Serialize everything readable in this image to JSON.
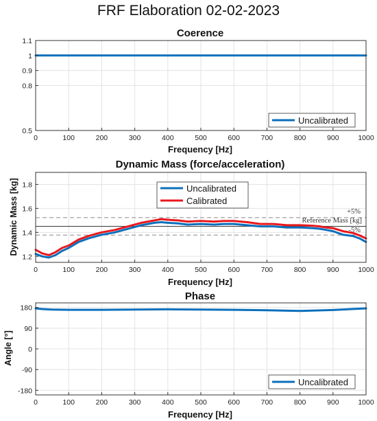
{
  "figure": {
    "title": "FRF Elaboration 02-02-2023"
  },
  "colors": {
    "uncalibrated": "#0b6fbc",
    "calibrated": "#e8181c",
    "reference": "#444444",
    "band": "#888888"
  },
  "chart_data": [
    {
      "type": "line",
      "title": "Coerence",
      "xlabel": "Frequency [Hz]",
      "ylabel": "",
      "xlim": [
        0,
        1000
      ],
      "ylim": [
        0.5,
        1.1
      ],
      "xticks": [
        "0",
        "100",
        "200",
        "300",
        "400",
        "500",
        "600",
        "700",
        "800",
        "900",
        "1000"
      ],
      "yticks": [
        {
          "v": 0.5,
          "label": "0.5"
        },
        {
          "v": 0.8,
          "label": "0.8"
        },
        {
          "v": 0.9,
          "label": "0.9"
        },
        {
          "v": 1.0,
          "label": "1"
        },
        {
          "v": 1.1,
          "label": "1.1"
        }
      ],
      "grid": true,
      "legend_position": "bottom-right",
      "series": [
        {
          "name": "Uncalibrated",
          "color": "#0b6fbc",
          "x": [
            0,
            100,
            200,
            300,
            400,
            500,
            600,
            700,
            800,
            900,
            1000
          ],
          "y": [
            1.0,
            1.0,
            1.0,
            1.0,
            1.0,
            1.0,
            1.0,
            1.0,
            1.0,
            1.0,
            1.0
          ]
        }
      ]
    },
    {
      "type": "line",
      "title": "Dynamic Mass (force/acceleration)",
      "xlabel": "Frequency [Hz]",
      "ylabel": "Dynamic Mass [kg]",
      "xlim": [
        0,
        1000
      ],
      "ylim": [
        1.15,
        1.9
      ],
      "xticks": [
        "0",
        "100",
        "200",
        "300",
        "400",
        "500",
        "600",
        "700",
        "800",
        "900",
        "1000"
      ],
      "yticks": [
        {
          "v": 1.2,
          "label": "1.2"
        },
        {
          "v": 1.4,
          "label": "1.4"
        },
        {
          "v": 1.6,
          "label": "1.6"
        },
        {
          "v": 1.8,
          "label": "1.8"
        }
      ],
      "grid": true,
      "legend_position": "top-center",
      "reference": {
        "value": 1.45,
        "label": "Reference Mass [kg]",
        "upper": 1.5225,
        "upper_label": "+5%",
        "lower": 1.3775,
        "lower_label": "-5%"
      },
      "series": [
        {
          "name": "Uncalibrated",
          "color": "#0b6fbc",
          "x": [
            0,
            20,
            40,
            60,
            80,
            100,
            130,
            160,
            200,
            240,
            280,
            320,
            360,
            380,
            400,
            430,
            460,
            500,
            540,
            570,
            600,
            640,
            680,
            720,
            760,
            800,
            840,
            860,
            880,
            900,
            930,
            960,
            980,
            1000
          ],
          "y": [
            1.22,
            1.2,
            1.19,
            1.21,
            1.245,
            1.27,
            1.32,
            1.35,
            1.38,
            1.4,
            1.43,
            1.46,
            1.48,
            1.485,
            1.48,
            1.475,
            1.465,
            1.47,
            1.465,
            1.47,
            1.47,
            1.46,
            1.45,
            1.45,
            1.44,
            1.44,
            1.435,
            1.43,
            1.42,
            1.41,
            1.38,
            1.37,
            1.35,
            1.32
          ]
        },
        {
          "name": "Calibrated",
          "color": "#e8181c",
          "x": [
            0,
            20,
            40,
            60,
            80,
            100,
            130,
            160,
            200,
            240,
            280,
            320,
            360,
            380,
            400,
            430,
            460,
            500,
            540,
            570,
            600,
            640,
            680,
            720,
            760,
            800,
            840,
            860,
            880,
            900,
            930,
            960,
            980,
            1000
          ],
          "y": [
            1.255,
            1.225,
            1.21,
            1.235,
            1.27,
            1.29,
            1.34,
            1.37,
            1.4,
            1.42,
            1.45,
            1.48,
            1.5,
            1.51,
            1.505,
            1.5,
            1.49,
            1.495,
            1.49,
            1.495,
            1.495,
            1.485,
            1.47,
            1.47,
            1.46,
            1.46,
            1.455,
            1.45,
            1.44,
            1.435,
            1.41,
            1.395,
            1.375,
            1.35
          ]
        }
      ]
    },
    {
      "type": "line",
      "title": "Phase",
      "xlabel": "Frequency [Hz]",
      "ylabel": "Angle [°]",
      "xlim": [
        0,
        1000
      ],
      "ylim": [
        -200,
        200
      ],
      "xticks": [
        "0",
        "100",
        "200",
        "300",
        "400",
        "500",
        "600",
        "700",
        "800",
        "900",
        "1000"
      ],
      "yticks": [
        {
          "v": -180,
          "label": "-180"
        },
        {
          "v": -90,
          "label": "-90"
        },
        {
          "v": 0,
          "label": "0"
        },
        {
          "v": 90,
          "label": "90"
        },
        {
          "v": 180,
          "label": "180"
        }
      ],
      "grid": true,
      "legend_position": "bottom-right",
      "series": [
        {
          "name": "Uncalibrated",
          "color": "#0b6fbc",
          "x": [
            0,
            20,
            50,
            100,
            200,
            300,
            400,
            500,
            600,
            700,
            800,
            900,
            1000
          ],
          "y": [
            176,
            173,
            171,
            170,
            170,
            171,
            172,
            171,
            170,
            168,
            165,
            169,
            176
          ]
        }
      ]
    }
  ]
}
